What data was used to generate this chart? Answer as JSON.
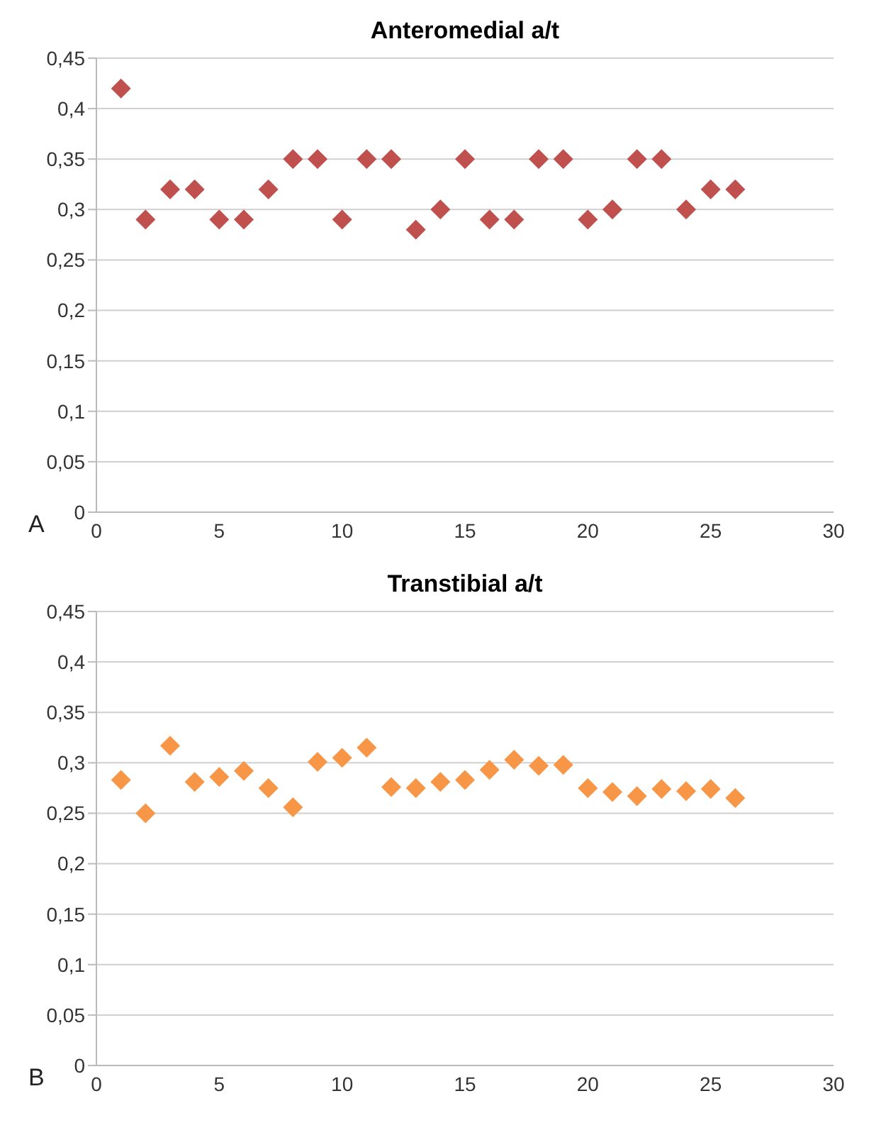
{
  "chart_data": [
    {
      "type": "scatter",
      "title": "Anteromedial a/t",
      "annotations": [
        "A"
      ],
      "x": [
        1,
        2,
        3,
        4,
        5,
        6,
        7,
        8,
        9,
        10,
        11,
        12,
        13,
        14,
        15,
        16,
        17,
        18,
        19,
        20,
        21,
        22,
        23,
        24,
        25,
        26
      ],
      "series": [
        {
          "color": "#c0504d",
          "values": [
            0.42,
            0.29,
            0.32,
            0.32,
            0.29,
            0.29,
            0.32,
            0.35,
            0.35,
            0.29,
            0.35,
            0.35,
            0.28,
            0.3,
            0.35,
            0.29,
            0.29,
            0.35,
            0.35,
            0.29,
            0.3,
            0.35,
            0.35,
            0.3,
            0.32,
            0.32
          ]
        }
      ],
      "xlim": [
        0,
        30
      ],
      "xticks": [
        0,
        5,
        10,
        15,
        20,
        25,
        30
      ],
      "ylim": [
        0,
        0.45
      ],
      "yticks": [
        0,
        {
          "value": 0.05,
          "label": "0,05"
        },
        {
          "value": 0.1,
          "label": "0,1"
        },
        {
          "value": 0.15,
          "label": "0,15"
        },
        {
          "value": 0.2,
          "label": "0,2"
        },
        {
          "value": 0.25,
          "label": "0,25"
        },
        {
          "value": 0.3,
          "label": "0,3"
        },
        {
          "value": 0.35,
          "label": "0,35"
        },
        {
          "value": 0.4,
          "label": "0,4"
        },
        {
          "value": 0.45,
          "label": "0,45"
        }
      ],
      "grid": "y",
      "marker": "diamond"
    },
    {
      "type": "scatter",
      "title": "Transtibial a/t",
      "annotations": [
        "B"
      ],
      "x": [
        1,
        2,
        3,
        4,
        5,
        6,
        7,
        8,
        9,
        10,
        11,
        12,
        13,
        14,
        15,
        16,
        17,
        18,
        19,
        20,
        21,
        22,
        23,
        24,
        25,
        26
      ],
      "series": [
        {
          "color": "#f79646",
          "values": [
            0.283,
            0.25,
            0.317,
            0.281,
            0.286,
            0.292,
            0.275,
            0.256,
            0.301,
            0.305,
            0.315,
            0.276,
            0.275,
            0.281,
            0.283,
            0.293,
            0.303,
            0.297,
            0.298,
            0.275,
            0.271,
            0.267,
            0.274,
            0.272,
            0.274,
            0.265
          ]
        }
      ],
      "xlim": [
        0,
        30
      ],
      "xticks": [
        0,
        5,
        10,
        15,
        20,
        25,
        30
      ],
      "ylim": [
        0,
        0.45
      ],
      "yticks": [
        0,
        {
          "value": 0.05,
          "label": "0,05"
        },
        {
          "value": 0.1,
          "label": "0,1"
        },
        {
          "value": 0.15,
          "label": "0,15"
        },
        {
          "value": 0.2,
          "label": "0,2"
        },
        {
          "value": 0.25,
          "label": "0,25"
        },
        {
          "value": 0.3,
          "label": "0,3"
        },
        {
          "value": 0.35,
          "label": "0,35"
        },
        {
          "value": 0.4,
          "label": "0,4"
        },
        {
          "value": 0.45,
          "label": "0,45"
        }
      ],
      "grid": "y",
      "marker": "diamond"
    }
  ]
}
